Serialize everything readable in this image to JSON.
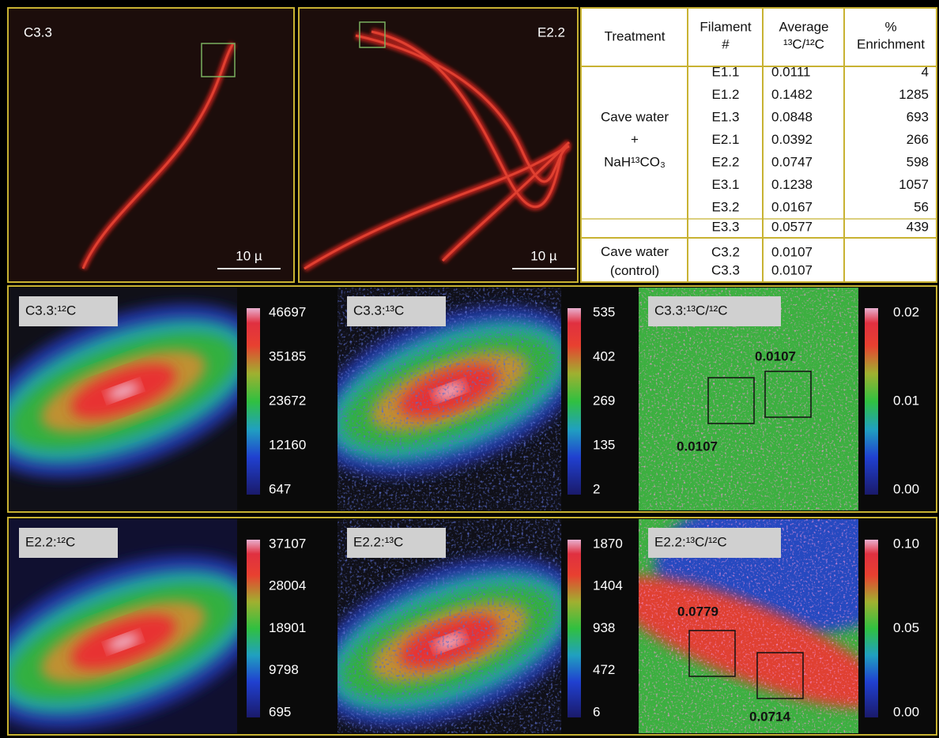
{
  "micrographs": [
    {
      "label": "C3.3",
      "scale_bar": "10 µ"
    },
    {
      "label": "E2.2",
      "scale_bar": "10 µ"
    }
  ],
  "table": {
    "header": [
      [
        "Treatment"
      ],
      [
        "Filament",
        "#"
      ],
      [
        "Average",
        "¹³C/¹²C"
      ],
      [
        "%",
        "Enrichment"
      ]
    ],
    "groups": [
      {
        "treatment": [
          "Cave water",
          "+",
          "NaH¹³CO₃"
        ],
        "rows": [
          [
            "E1.1",
            0.0111,
            4
          ],
          [
            "E1.2",
            0.1482,
            1285
          ],
          [
            "E1.3",
            0.0848,
            693
          ],
          [
            "E2.1",
            0.0392,
            266
          ],
          [
            "E2.2",
            0.0747,
            598
          ],
          [
            "E3.1",
            0.1238,
            1057
          ],
          [
            "E3.2",
            0.0167,
            56
          ]
        ]
      },
      {
        "rows": [
          [
            "E3.3",
            0.0577,
            439
          ]
        ]
      },
      {
        "treatment": [
          "Cave water",
          "(control)"
        ],
        "rows": [
          [
            "C3.2",
            0.0107
          ],
          [
            "C3.3",
            0.0107
          ]
        ]
      }
    ]
  },
  "maps": [
    [
      {
        "label": "C3.3:¹²C",
        "scale": [
          46697,
          35185,
          23672,
          12160,
          647
        ]
      },
      {
        "label": "C3.3:¹³C",
        "scale": [
          535,
          402,
          269,
          135,
          2
        ]
      },
      {
        "label": "C3.3:¹³C/¹²C",
        "scale": [
          "0.02",
          "0.01",
          "0.00"
        ],
        "annotations": [
          "0.0107",
          "0.0107"
        ]
      }
    ],
    [
      {
        "label": "E2.2:¹²C",
        "scale": [
          37107,
          28004,
          18901,
          9798,
          695
        ]
      },
      {
        "label": "E2.2:¹³C",
        "scale": [
          1870,
          1404,
          938,
          472,
          6
        ]
      },
      {
        "label": "E2.2:¹³C/¹²C",
        "scale": [
          "0.10",
          "0.05",
          "0.00"
        ],
        "annotations": [
          "0.0779",
          "0.0714"
        ]
      }
    ]
  ]
}
